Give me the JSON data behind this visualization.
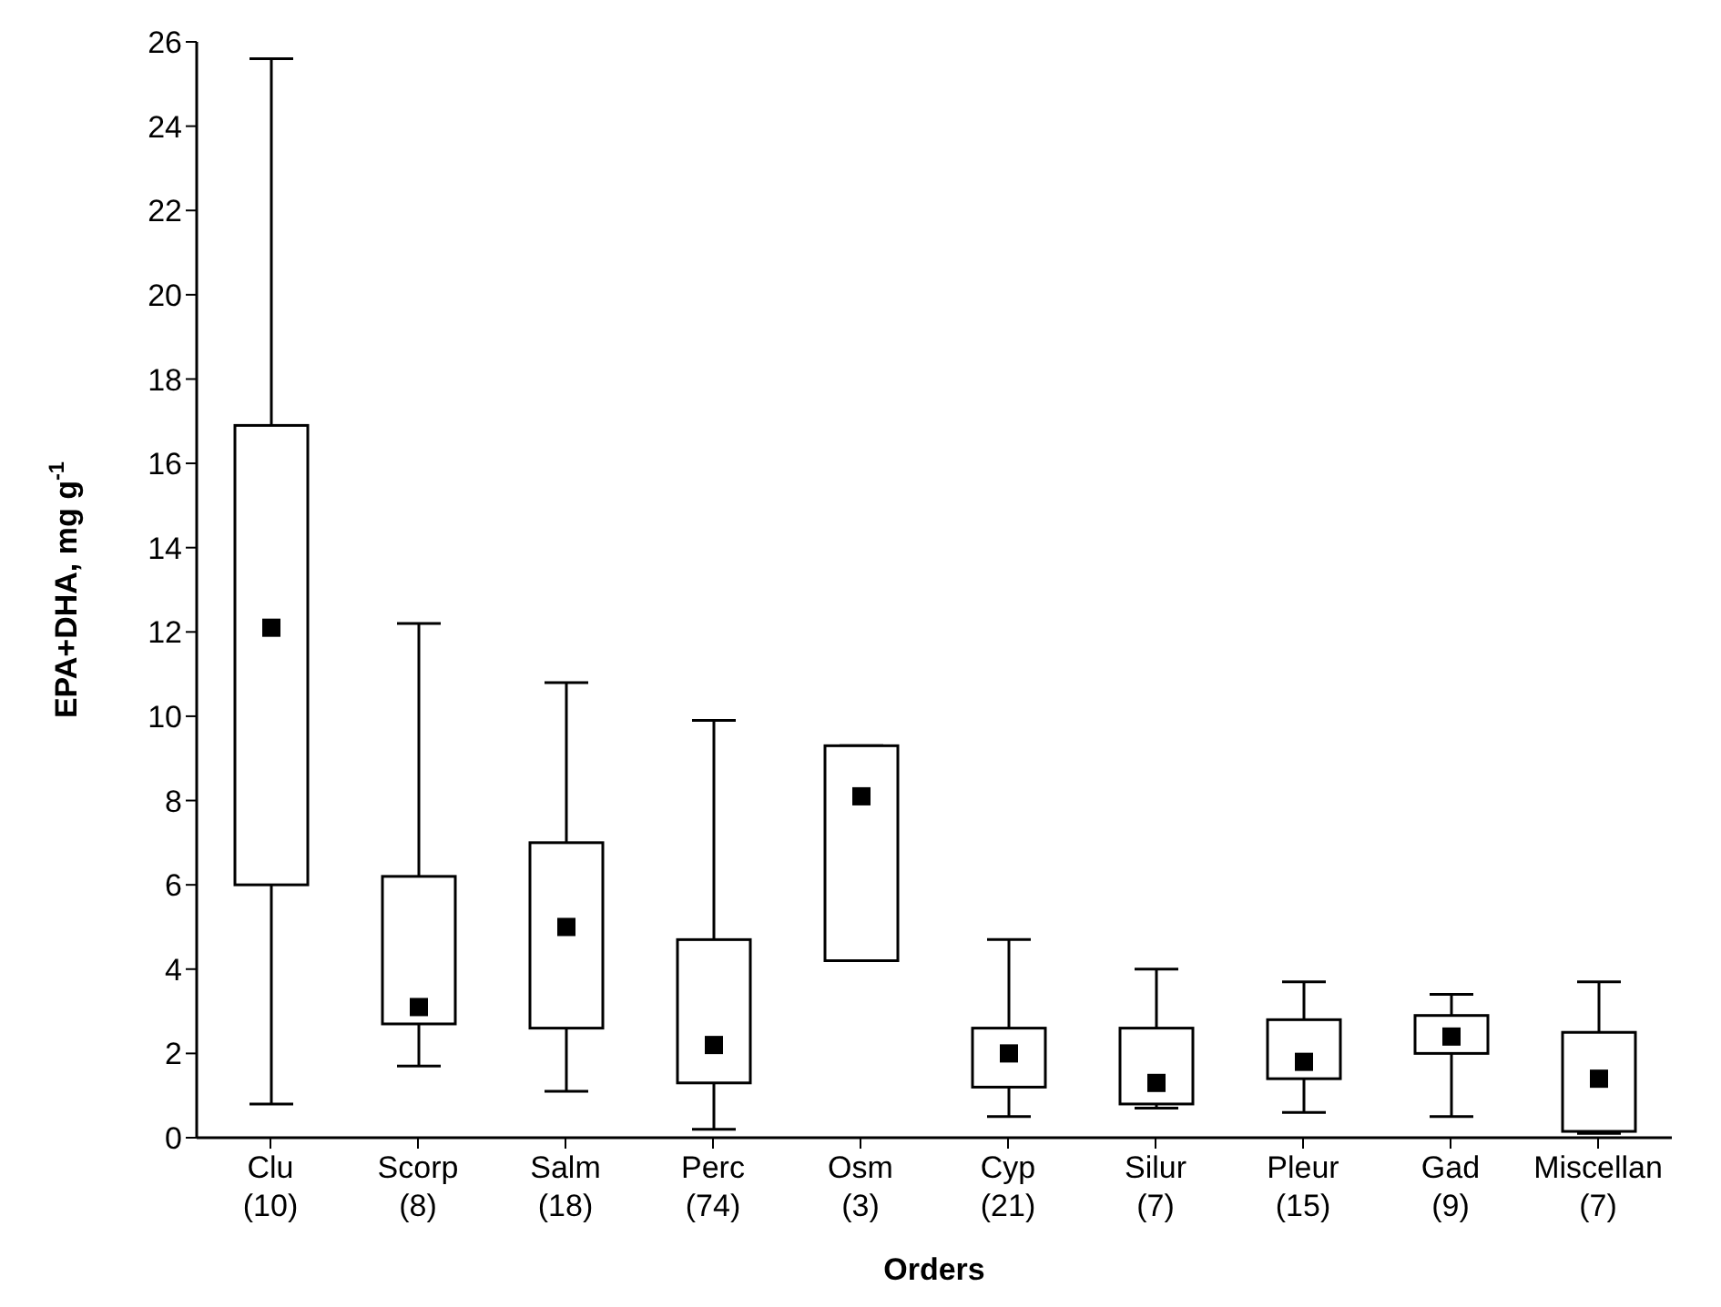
{
  "chart_data": {
    "type": "box",
    "xlabel": "Orders",
    "ylabel": "EPA+DHA, mg g$^{-1}$",
    "categories": [
      "Clu\n(10)",
      "Scorp\n(8)",
      "Salm\n(18)",
      "Perc\n(74)",
      "Osm\n(3)",
      "Cyp\n(21)",
      "Silur\n(7)",
      "Pleur\n(15)",
      "Gad\n(9)",
      "Miscellan\n(7)"
    ],
    "boxes": [
      {
        "low": 0.8,
        "q1": 6.0,
        "median": 12.1,
        "q3": 16.9,
        "high": 25.6
      },
      {
        "low": 1.7,
        "q1": 2.7,
        "median": 3.1,
        "q3": 6.2,
        "high": 12.2
      },
      {
        "low": 1.1,
        "q1": 2.6,
        "median": 5.0,
        "q3": 7.0,
        "high": 10.8
      },
      {
        "low": 0.2,
        "q1": 1.3,
        "median": 2.2,
        "q3": 4.7,
        "high": 9.9
      },
      {
        "low": 4.2,
        "q1": 4.2,
        "median": 8.1,
        "q3": 9.3,
        "high": 9.3
      },
      {
        "low": 0.5,
        "q1": 1.2,
        "median": 2.0,
        "q3": 2.6,
        "high": 4.7
      },
      {
        "low": 0.7,
        "q1": 0.8,
        "median": 1.3,
        "q3": 2.6,
        "high": 4.0
      },
      {
        "low": 0.6,
        "q1": 1.4,
        "median": 1.8,
        "q3": 2.8,
        "high": 3.7
      },
      {
        "low": 0.5,
        "q1": 2.0,
        "median": 2.4,
        "q3": 2.9,
        "high": 3.4
      },
      {
        "low": 0.1,
        "q1": 0.15,
        "median": 1.4,
        "q3": 2.5,
        "high": 3.7
      }
    ],
    "color": "#000000",
    "marker": "square",
    "grid": false,
    "legend": false,
    "ylim": [
      0,
      26
    ],
    "yticks": [
      0,
      2,
      4,
      6,
      8,
      10,
      12,
      14,
      16,
      18,
      20,
      22,
      24,
      26
    ]
  }
}
